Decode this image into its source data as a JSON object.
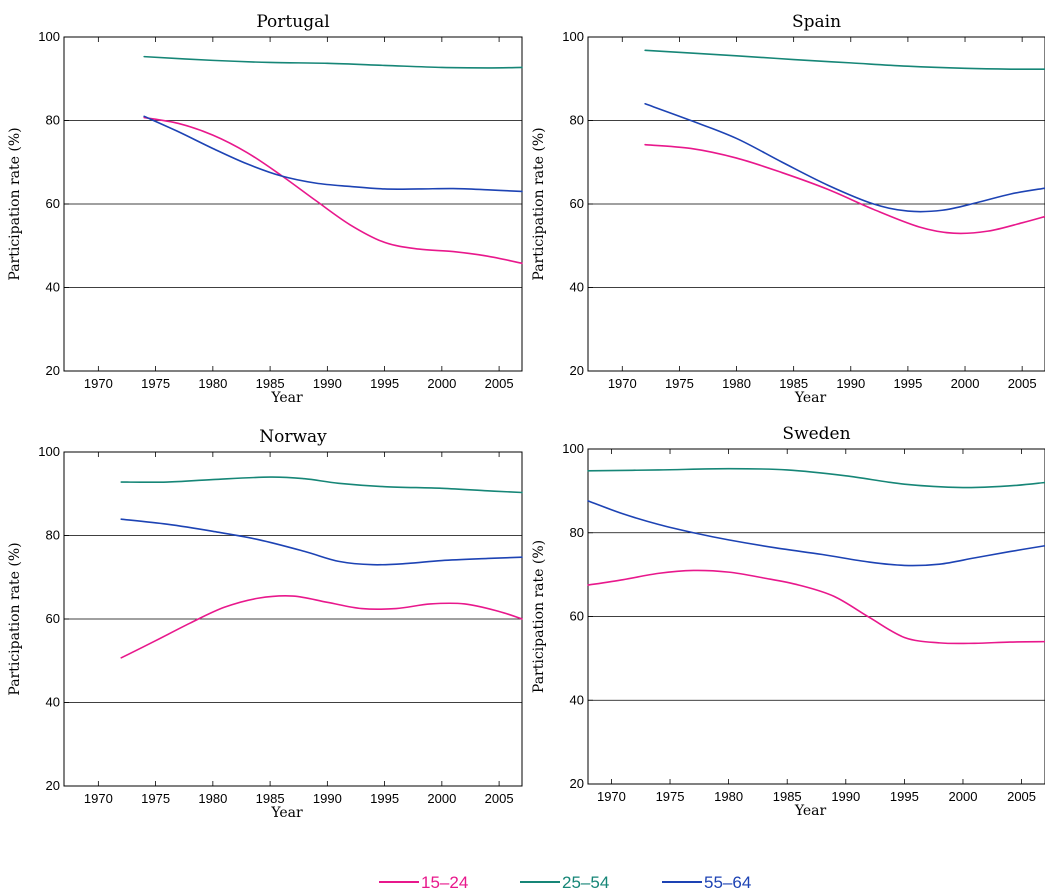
{
  "colors": {
    "15-24": "#e8188c",
    "25-54": "#168677",
    "55-64": "#1d43b4"
  },
  "legend": [
    {
      "key": "15-24",
      "label": "15–24"
    },
    {
      "key": "25-54",
      "label": "25–54"
    },
    {
      "key": "55-64",
      "label": "55–64"
    }
  ],
  "chart_data": [
    {
      "type": "line",
      "title": "Portugal",
      "xlabel": "Year",
      "ylabel": "Participation rate (%)",
      "xlim": [
        1967,
        2007
      ],
      "ylim": [
        20,
        100
      ],
      "xticks": [
        1970,
        1975,
        1980,
        1985,
        1990,
        1995,
        2000,
        2005
      ],
      "yticks": [
        20,
        40,
        60,
        80,
        100
      ],
      "gridlines_y": [
        40,
        60,
        80
      ],
      "series": [
        {
          "name": "15–24",
          "key": "15-24",
          "x": [
            1974,
            1977,
            1980,
            1983,
            1986,
            1989,
            1992,
            1995,
            1998,
            2001,
            2004,
            2007
          ],
          "y": [
            80.7,
            79.3,
            76.5,
            72.3,
            66.8,
            60.8,
            55.0,
            50.8,
            49.2,
            48.6,
            47.5,
            45.8
          ]
        },
        {
          "name": "25–54",
          "key": "25-54",
          "x": [
            1974,
            1980,
            1985,
            1990,
            1995,
            2000,
            2004,
            2007
          ],
          "y": [
            95.3,
            94.4,
            93.9,
            93.7,
            93.2,
            92.7,
            92.6,
            92.7
          ]
        },
        {
          "name": "55–64",
          "key": "55-64",
          "x": [
            1974,
            1977,
            1980,
            1983,
            1986,
            1989,
            1992,
            1995,
            1998,
            2001,
            2004,
            2007
          ],
          "y": [
            81.0,
            77.3,
            73.3,
            69.6,
            66.7,
            65.0,
            64.2,
            63.6,
            63.6,
            63.7,
            63.4,
            63.0
          ]
        }
      ]
    },
    {
      "type": "line",
      "title": "Spain",
      "xlabel": "Year",
      "ylabel": "Participation rate (%)",
      "xlim": [
        1967,
        2007
      ],
      "ylim": [
        20,
        100
      ],
      "xticks": [
        1970,
        1975,
        1980,
        1985,
        1990,
        1995,
        2000,
        2005
      ],
      "yticks": [
        20,
        40,
        60,
        80,
        100
      ],
      "gridlines_y": [
        40,
        60,
        80
      ],
      "series": [
        {
          "name": "15–24",
          "key": "15-24",
          "x": [
            1972,
            1976,
            1980,
            1984,
            1988,
            1992,
            1996,
            1999,
            2002,
            2005,
            2007
          ],
          "y": [
            74.2,
            73.3,
            71.0,
            67.5,
            63.5,
            58.7,
            54.5,
            53.0,
            53.5,
            55.5,
            57.0
          ]
        },
        {
          "name": "25–54",
          "key": "25-54",
          "x": [
            1972,
            1980,
            1985,
            1990,
            1995,
            2000,
            2004,
            2007
          ],
          "y": [
            96.8,
            95.5,
            94.6,
            93.8,
            93.0,
            92.5,
            92.3,
            92.3
          ]
        },
        {
          "name": "55–64",
          "key": "55-64",
          "x": [
            1972,
            1976,
            1980,
            1984,
            1988,
            1992,
            1995,
            1998,
            2001,
            2004,
            2007
          ],
          "y": [
            84.0,
            80.0,
            75.7,
            70.0,
            64.5,
            60.0,
            58.3,
            58.5,
            60.3,
            62.4,
            63.8
          ]
        }
      ]
    },
    {
      "type": "line",
      "title": "Norway",
      "xlabel": "Year",
      "ylabel": "Participation rate (%)",
      "xlim": [
        1967,
        2007
      ],
      "ylim": [
        20,
        100
      ],
      "xticks": [
        1970,
        1975,
        1980,
        1985,
        1990,
        1995,
        2000,
        2005
      ],
      "yticks": [
        20,
        40,
        60,
        80,
        100
      ],
      "gridlines_y": [
        40,
        60,
        80
      ],
      "series": [
        {
          "name": "15–24",
          "key": "15-24",
          "x": [
            1972,
            1975,
            1978,
            1981,
            1984,
            1987,
            1990,
            1993,
            1996,
            1999,
            2002,
            2005,
            2007
          ],
          "y": [
            50.7,
            54.8,
            59.0,
            62.8,
            65.0,
            65.5,
            64.0,
            62.5,
            62.5,
            63.6,
            63.6,
            61.8,
            60.0
          ]
        },
        {
          "name": "25–54",
          "key": "25-54",
          "x": [
            1972,
            1976,
            1980,
            1985,
            1988,
            1991,
            1995,
            2000,
            2004,
            2007
          ],
          "y": [
            92.8,
            92.8,
            93.4,
            94.0,
            93.6,
            92.5,
            91.7,
            91.3,
            90.7,
            90.3
          ]
        },
        {
          "name": "55–64",
          "key": "55-64",
          "x": [
            1972,
            1976,
            1980,
            1984,
            1988,
            1991,
            1994,
            1997,
            2000,
            2004,
            2007
          ],
          "y": [
            83.9,
            82.7,
            81.0,
            79.0,
            76.2,
            73.8,
            73.0,
            73.3,
            74.0,
            74.5,
            74.8
          ]
        }
      ]
    },
    {
      "type": "line",
      "title": "Sweden",
      "xlabel": "Year",
      "ylabel": "Participation rate (%)",
      "xlim": [
        1968,
        2007
      ],
      "ylim": [
        20,
        100
      ],
      "xticks": [
        1970,
        1975,
        1980,
        1985,
        1990,
        1995,
        2000,
        2005
      ],
      "yticks": [
        20,
        40,
        60,
        80,
        100
      ],
      "gridlines_y": [
        40,
        60,
        80
      ],
      "series": [
        {
          "name": "15–24",
          "key": "15-24",
          "x": [
            1968,
            1971,
            1974,
            1977,
            1980,
            1983,
            1986,
            1989,
            1992,
            1995,
            1998,
            2001,
            2004,
            2007
          ],
          "y": [
            67.5,
            68.8,
            70.3,
            71.0,
            70.6,
            69.2,
            67.5,
            64.8,
            59.8,
            55.0,
            53.7,
            53.6,
            53.9,
            54.0
          ]
        },
        {
          "name": "25–54",
          "key": "25-54",
          "x": [
            1968,
            1974,
            1980,
            1985,
            1990,
            1995,
            2000,
            2004,
            2007
          ],
          "y": [
            94.8,
            95.0,
            95.3,
            95.0,
            93.6,
            91.6,
            90.8,
            91.2,
            92.0
          ]
        },
        {
          "name": "55–64",
          "key": "55-64",
          "x": [
            1968,
            1971,
            1974,
            1977,
            1980,
            1984,
            1988,
            1992,
            1995,
            1998,
            2001,
            2004,
            2007
          ],
          "y": [
            87.6,
            84.5,
            82.0,
            80.0,
            78.3,
            76.4,
            74.8,
            73.0,
            72.2,
            72.5,
            74.0,
            75.5,
            76.9
          ]
        }
      ]
    }
  ]
}
